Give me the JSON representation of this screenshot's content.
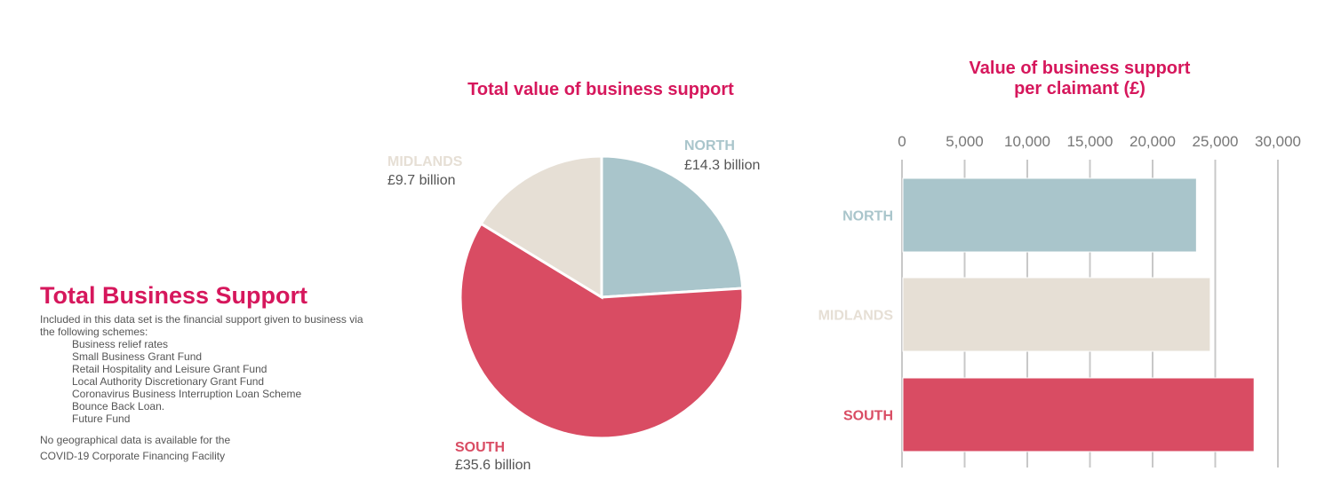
{
  "panel": {
    "title": "Total Business Support",
    "intro": "Included in this data set is the financial support given to business via the following schemes:",
    "schemes": [
      "Business relief rates",
      "Small Business Grant Fund",
      "Retail Hospitality and Leisure Grant Fund",
      "Local Authority Discretionary Grant Fund",
      "Coronavirus Business Interruption Loan Scheme",
      "Bounce Back Loan.",
      "Future Fund"
    ],
    "note_line1": "No geographical data is available for the",
    "note_line2": "COVID-19 Corporate Financing Facility"
  },
  "colors": {
    "north": "#a9c5cb",
    "midlands": "#e6dfd5",
    "south": "#d94c63",
    "title": "#d6175c"
  },
  "chart_data": [
    {
      "type": "pie",
      "title": "Total value of business support",
      "slices": [
        {
          "label": "NORTH",
          "value": 14.3,
          "value_text": "£14.3 billion",
          "color": "#a9c5cb"
        },
        {
          "label": "SOUTH",
          "value": 35.6,
          "value_text": "£35.6 billion",
          "color": "#d94c63"
        },
        {
          "label": "MIDLANDS",
          "value": 9.7,
          "value_text": "£9.7 billion",
          "color": "#e6dfd5"
        }
      ]
    },
    {
      "type": "bar",
      "orientation": "horizontal",
      "title_line1": "Value of business support",
      "title_line2": "per claimant (£)",
      "categories": [
        "NORTH",
        "MIDLANDS",
        "SOUTH"
      ],
      "values": [
        23500,
        24600,
        28100
      ],
      "colors": [
        "#a9c5cb",
        "#e6dfd5",
        "#d94c63"
      ],
      "xlim": [
        0,
        30000
      ],
      "ticks": [
        "0",
        "5,000",
        "10,000",
        "15,000",
        "20,000",
        "25,000",
        "30,000"
      ],
      "axis_position": "top",
      "grid": true
    }
  ]
}
